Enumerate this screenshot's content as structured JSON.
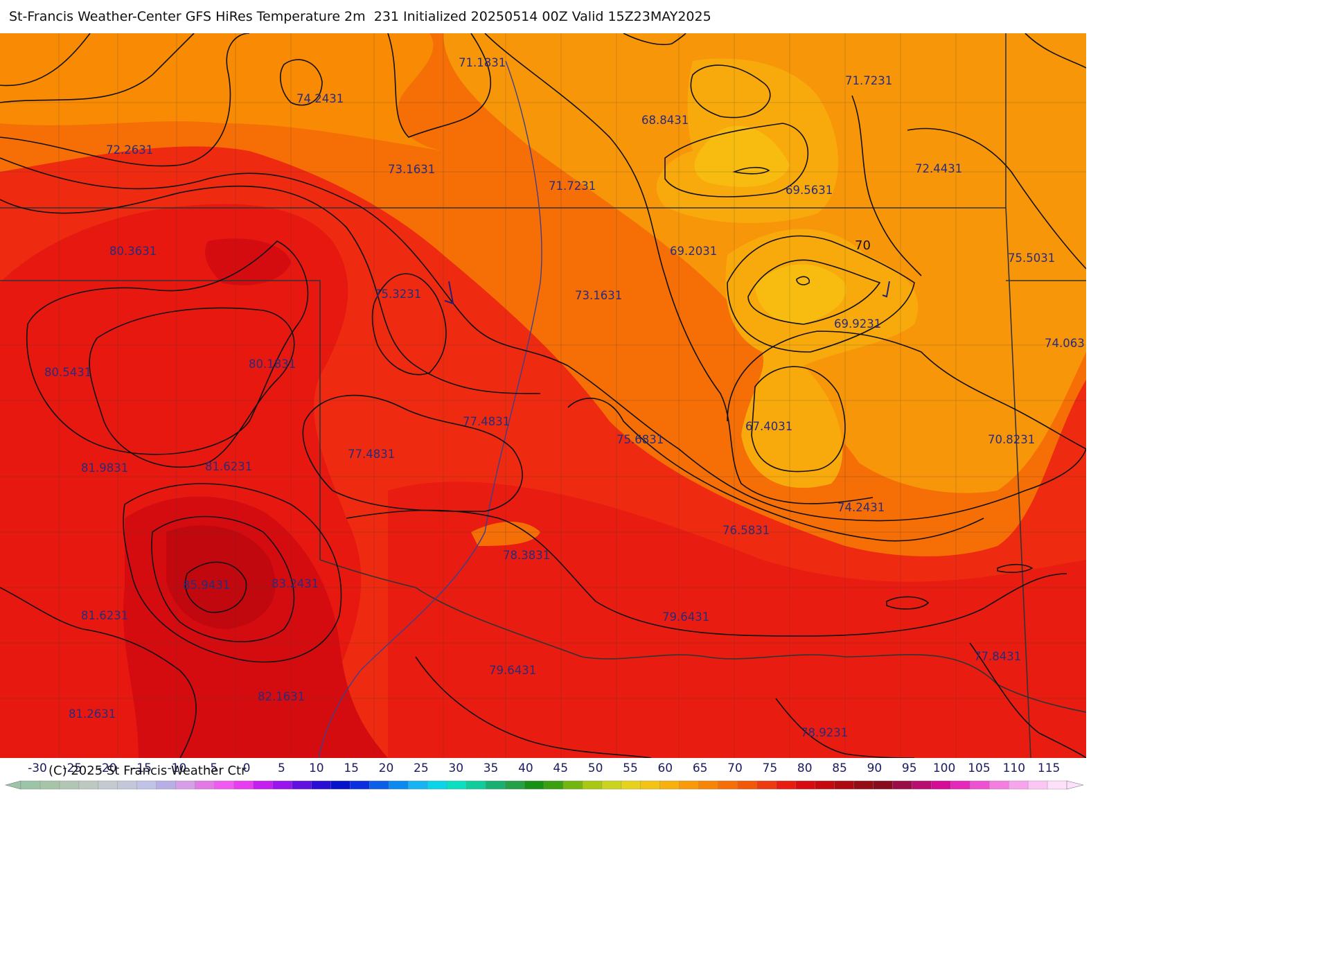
{
  "title": "St-Francis Weather-Center GFS HiRes Temperature 2m  231 Initialized 20250514 00Z Valid 15Z23MAY2025",
  "copyright": "(C) 2025 St Francis Weather Ctr",
  "contour_label": "70",
  "values": [
    "71.1831",
    "74.2431",
    "71.7231",
    "68.8431",
    "72.2631",
    "73.1631",
    "71.7231",
    "72.4431",
    "69.5631",
    "80.3631",
    "69.2031",
    "75.5031",
    "75.3231",
    "73.1631",
    "69.9231",
    "74.063",
    "80.1831",
    "80.5431",
    "67.4031",
    "77.4831",
    "75.6831",
    "70.8231",
    "77.4831",
    "81.9831",
    "81.6231",
    "74.2431",
    "76.5831",
    "78.3831",
    "85.9431",
    "83.2431",
    "79.6431",
    "81.6231",
    "77.8431",
    "79.6431",
    "82.1631",
    "81.2631",
    "78.9231"
  ],
  "colorbar": {
    "ticks": [
      "-30",
      "-25",
      "-20",
      "-15",
      "-10",
      "-5",
      "0",
      "5",
      "10",
      "15",
      "20",
      "25",
      "30",
      "35",
      "40",
      "45",
      "50",
      "55",
      "60",
      "65",
      "70",
      "75",
      "80",
      "85",
      "90",
      "95",
      "100",
      "105",
      "110",
      "115"
    ],
    "colors": [
      "#9cc4a6",
      "#a7c4a8",
      "#b2c6b4",
      "#bcc8c0",
      "#c4cad0",
      "#c4c6da",
      "#c0c2e6",
      "#b8aee6",
      "#d69ee6",
      "#e27ae6",
      "#f05af0",
      "#e83cf0",
      "#c41ef0",
      "#9a14ee",
      "#6210e0",
      "#2a0ed6",
      "#0612cc",
      "#0a2ee0",
      "#0a5ee8",
      "#0a8af0",
      "#16b4f2",
      "#0ad4e8",
      "#0ae0c0",
      "#10cc9a",
      "#18b070",
      "#24a046",
      "#189016",
      "#3aa012",
      "#74b610",
      "#a8c814",
      "#cad41e",
      "#e6d21a",
      "#f4c414",
      "#f8b00c",
      "#fa9a08",
      "#f88404",
      "#f56e06",
      "#f25808",
      "#ee3a10",
      "#e81c10",
      "#d80c10",
      "#c4080e",
      "#ac0a10",
      "#940c14",
      "#860c1e",
      "#9a0c48",
      "#b80c6e",
      "#d40c96",
      "#e628ba",
      "#ee50d2",
      "#f47ee0",
      "#f8a4ec",
      "#fbc6f4",
      "#fde0f9"
    ]
  }
}
